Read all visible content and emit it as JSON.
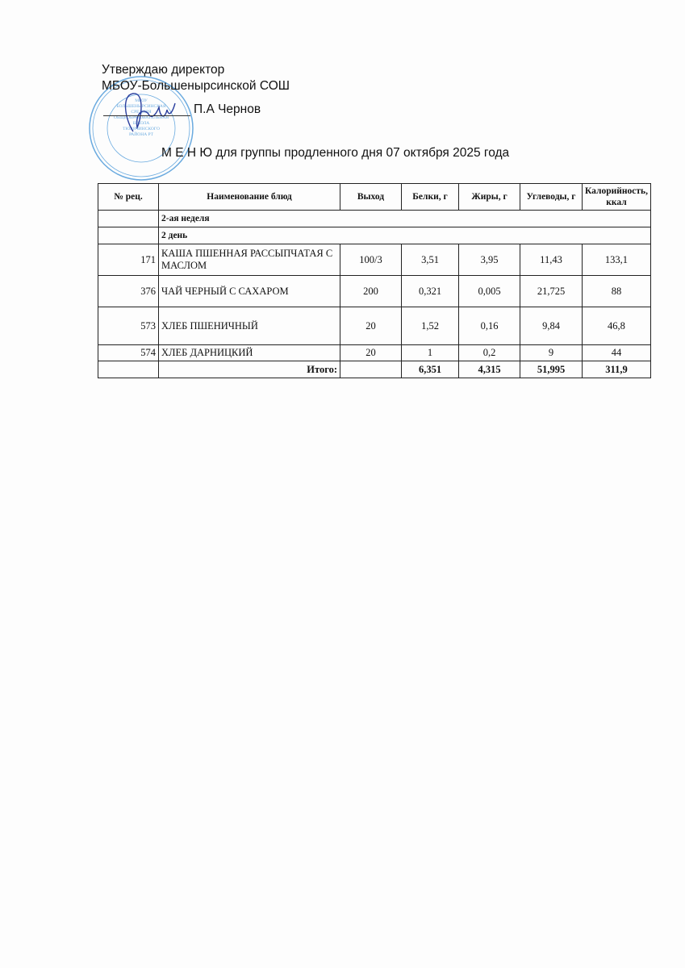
{
  "header": {
    "approve_line1": "Утверждаю  директор",
    "approve_line2": "МБОУ-Большенырсинской СОШ",
    "director_name": "П.А Чернов",
    "menu_title": "М Е Н Ю  для  группы продленного дня  07  октября  2025 года"
  },
  "stamp": {
    "center_text": [
      "МБОУ",
      "БОЛЬШЕНЫРСИНСКАЯ",
      "СРЕДНЯЯ",
      "ОБЩЕОБРАЗОВАТЕЛЬНАЯ",
      "ШКОЛА",
      "ТЮЛЯЧИНСКОГО",
      "РАЙОНА РТ"
    ],
    "color": "#3a8fd6"
  },
  "table": {
    "columns": [
      "№ рец.",
      "Наименование блюд",
      "Выход",
      "Белки, г",
      "Жиры, г",
      "Углеводы, г",
      "Калорийность, ккал"
    ],
    "sections": [
      "2-ая неделя",
      "2 день"
    ],
    "rows": [
      {
        "rec": "171",
        "name": "КАША ПШЕННАЯ РАССЫПЧАТАЯ С МАСЛОМ",
        "output": "100/3",
        "protein": "3,51",
        "fat": "3,95",
        "carbs": "11,43",
        "kcal": "133,1"
      },
      {
        "rec": "376",
        "name": "ЧАЙ ЧЕРНЫЙ С САХАРОМ",
        "output": "200",
        "protein": "0,321",
        "fat": "0,005",
        "carbs": "21,725",
        "kcal": "88"
      },
      {
        "rec": "573",
        "name": "ХЛЕБ ПШЕНИЧНЫЙ",
        "output": "20",
        "protein": "1,52",
        "fat": "0,16",
        "carbs": "9,84",
        "kcal": "46,8"
      },
      {
        "rec": "574",
        "name": "ХЛЕБ ДАРНИЦКИЙ",
        "output": "20",
        "protein": "1",
        "fat": "0,2",
        "carbs": "9",
        "kcal": "44"
      }
    ],
    "total": {
      "label": "Итого:",
      "protein": "6,351",
      "fat": "4,315",
      "carbs": "51,995",
      "kcal": "311,9"
    }
  }
}
